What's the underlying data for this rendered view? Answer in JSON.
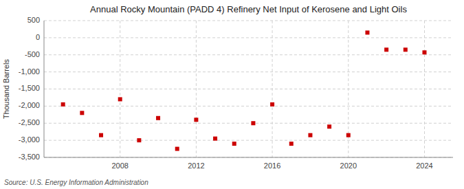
{
  "chart_data": {
    "type": "scatter",
    "title": "Annual Rocky Mountain (PADD 4) Refinery Net Input of Kerosene and Light Oils",
    "ylabel": "Thousand Barrels",
    "source": "Source: U.S. Energy Information Administration",
    "x": [
      2005,
      2006,
      2007,
      2008,
      2009,
      2010,
      2011,
      2012,
      2013,
      2014,
      2015,
      2016,
      2017,
      2018,
      2019,
      2020,
      2021,
      2022,
      2023,
      2024
    ],
    "values": [
      -1950,
      -2200,
      -2850,
      -1800,
      -3000,
      -2350,
      -3250,
      -2400,
      -2950,
      -3100,
      -2500,
      -1950,
      -3100,
      -2850,
      -2600,
      -2850,
      150,
      -350,
      -350,
      -430
    ],
    "color": "#cc0000",
    "marker": "square",
    "xlim": [
      2004,
      2025.5
    ],
    "xticks": [
      2008,
      2012,
      2016,
      2020,
      2024
    ],
    "ylim": [
      -3500,
      500
    ],
    "yticks": [
      500,
      0,
      -500,
      {
        "value": -1000,
        "label": "-1,000"
      },
      {
        "value": -1500,
        "label": "-1,500"
      },
      {
        "value": -2000,
        "label": "-2,000"
      },
      {
        "value": -2500,
        "label": "-2,500"
      },
      {
        "value": -3000,
        "label": "-3,000"
      },
      {
        "value": -3500,
        "label": "-3,500"
      }
    ],
    "grid": true
  }
}
